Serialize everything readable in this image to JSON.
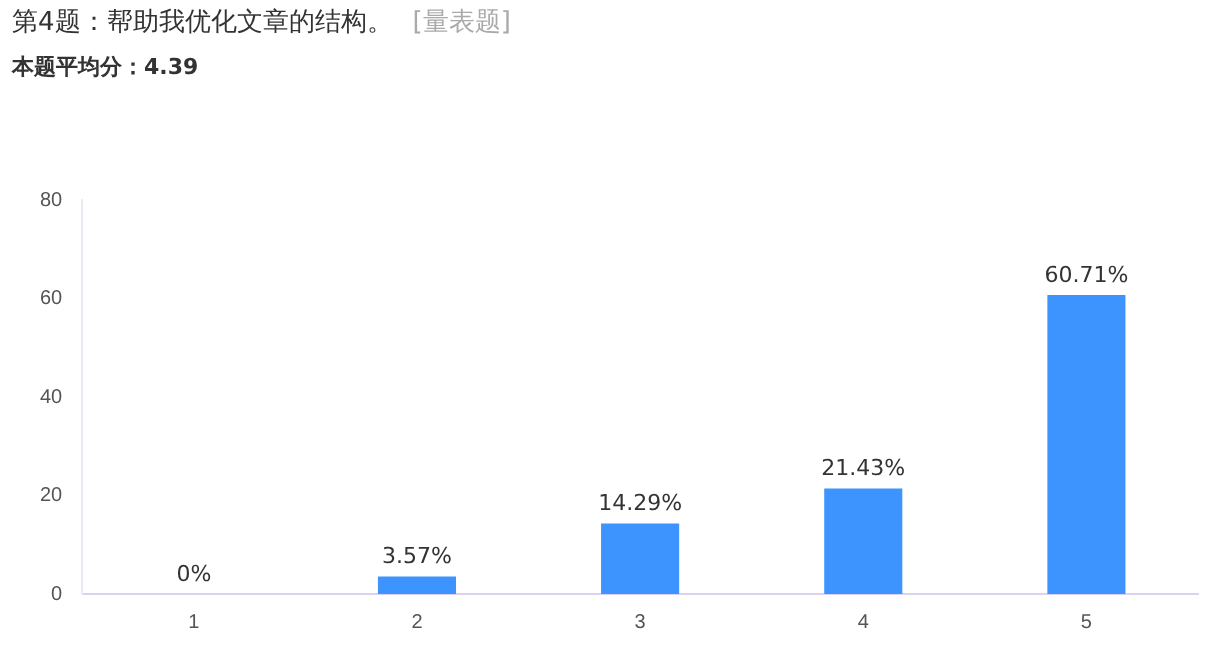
{
  "chart_data": {
    "type": "bar",
    "title": "第4题：帮助我优化文章的结构。",
    "subtitle": "本题平均分：4.39",
    "annotations": [
      "[量表题]"
    ],
    "categories": [
      "1",
      "2",
      "3",
      "4",
      "5"
    ],
    "values": [
      0,
      3.57,
      14.29,
      21.43,
      60.71
    ],
    "value_labels": [
      "0%",
      "3.57%",
      "14.29%",
      "21.43%",
      "60.71%"
    ],
    "color": "#3d94fe",
    "ylim": [
      0,
      80
    ],
    "yticks": [
      0,
      20,
      40,
      60,
      80
    ],
    "grid": false,
    "legend": false
  }
}
